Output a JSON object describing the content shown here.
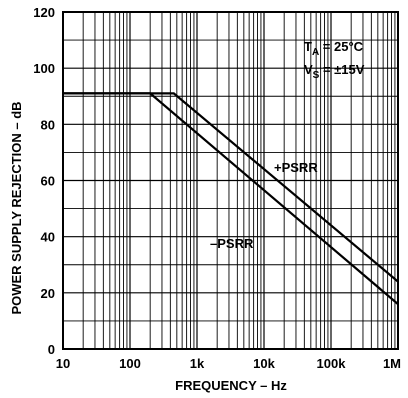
{
  "chart_data": {
    "type": "line",
    "xlabel": "FREQUENCY – Hz",
    "ylabel": "POWER SUPPLY REJECTION – dB",
    "x_scale": "log",
    "xlim": [
      10,
      1000000
    ],
    "ylim": [
      0,
      120
    ],
    "x_ticks": [
      10,
      100,
      1000,
      10000,
      100000,
      1000000
    ],
    "x_tick_labels": [
      "10",
      "100",
      "1k",
      "10k",
      "100k",
      "1M"
    ],
    "y_ticks": [
      0,
      20,
      40,
      60,
      80,
      100,
      120
    ],
    "y_tick_labels": [
      "0",
      "20",
      "40",
      "60",
      "80",
      "100",
      "120"
    ],
    "grid": true,
    "series": [
      {
        "name": "+PSRR",
        "x": [
          10,
          450,
          1000000
        ],
        "y": [
          91,
          91,
          24
        ]
      },
      {
        "name": "–PSRR",
        "x": [
          10,
          200,
          1000000
        ],
        "y": [
          91,
          91,
          16
        ]
      }
    ],
    "annotations": {
      "ta_main": "T",
      "ta_sub": "A",
      "ta_value": " = 25°C",
      "vs_main": "V",
      "vs_sub": "S",
      "vs_value": " = ±15V"
    },
    "colors": {
      "line": "#000000",
      "grid": "#000000"
    }
  }
}
